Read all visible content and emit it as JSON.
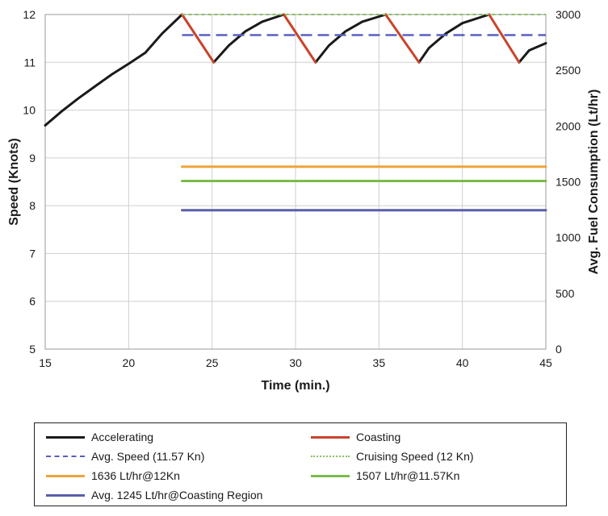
{
  "chart_data": {
    "type": "line",
    "xlabel": "Time (min.)",
    "ylabel": "Speed (Knots)",
    "y2label": "Avg. Fuel Consumption (Lt/hr)",
    "xlim": [
      15,
      45
    ],
    "ylim": [
      5,
      12
    ],
    "y2lim": [
      0,
      3000
    ],
    "xticks": [
      15,
      20,
      25,
      30,
      35,
      40,
      45
    ],
    "yticks": [
      5,
      6,
      7,
      8,
      9,
      10,
      11,
      12
    ],
    "y2ticks": [
      0,
      500,
      1000,
      1500,
      2000,
      2500,
      3000
    ],
    "grid": true,
    "legend_position": "bottom",
    "series": [
      {
        "name": "Accelerating",
        "axis": "left",
        "color": "#1a1a1a",
        "style": "solid",
        "segments": [
          [
            [
              15,
              9.68
            ],
            [
              16,
              9.98
            ],
            [
              17,
              10.25
            ],
            [
              18,
              10.5
            ],
            [
              19,
              10.75
            ],
            [
              20,
              10.97
            ],
            [
              21,
              11.2
            ],
            [
              22,
              11.6
            ],
            [
              23.2,
              12.0
            ]
          ],
          [
            [
              25.1,
              11.0
            ],
            [
              26,
              11.35
            ],
            [
              27,
              11.65
            ],
            [
              28,
              11.85
            ],
            [
              29.3,
              12.0
            ]
          ],
          [
            [
              31.2,
              11.0
            ],
            [
              32,
              11.35
            ],
            [
              33,
              11.65
            ],
            [
              34,
              11.85
            ],
            [
              35.4,
              12.0
            ]
          ],
          [
            [
              37.4,
              11.0
            ],
            [
              38,
              11.3
            ],
            [
              39,
              11.6
            ],
            [
              40,
              11.82
            ],
            [
              41.6,
              12.0
            ]
          ],
          [
            [
              43.4,
              11.0
            ],
            [
              44,
              11.25
            ],
            [
              45,
              11.4
            ]
          ]
        ]
      },
      {
        "name": "Coasting",
        "axis": "left",
        "color": "#c8442b",
        "style": "solid",
        "segments": [
          [
            [
              23.2,
              12.0
            ],
            [
              25.1,
              11.0
            ]
          ],
          [
            [
              29.3,
              12.0
            ],
            [
              31.2,
              11.0
            ]
          ],
          [
            [
              35.4,
              12.0
            ],
            [
              37.4,
              11.0
            ]
          ],
          [
            [
              41.6,
              12.0
            ],
            [
              43.4,
              11.0
            ]
          ]
        ]
      },
      {
        "name": "Avg. Speed (11.57 Kn)",
        "axis": "left",
        "color": "#5b5fbf",
        "style": "dash",
        "segments": [
          [
            [
              23.2,
              11.57
            ],
            [
              45,
              11.57
            ]
          ]
        ]
      },
      {
        "name": "Cruising Speed (12 Kn)",
        "axis": "left",
        "color": "#8cc063",
        "style": "dot",
        "segments": [
          [
            [
              23.2,
              12.0
            ],
            [
              45,
              12.0
            ]
          ]
        ]
      },
      {
        "name": "1636 Lt/hr@12Kn",
        "axis": "right",
        "color": "#f0a43a",
        "style": "solid",
        "segments": [
          [
            [
              23.2,
              1636
            ],
            [
              45,
              1636
            ]
          ]
        ]
      },
      {
        "name": "1507 Lt/hr@11.57Kn",
        "axis": "right",
        "color": "#7cbb4a",
        "style": "solid",
        "segments": [
          [
            [
              23.2,
              1507
            ],
            [
              45,
              1507
            ]
          ]
        ]
      },
      {
        "name": "Avg. 1245 Lt/hr@Coasting Region",
        "axis": "right",
        "color": "#5a5ea8",
        "style": "solid",
        "segments": [
          [
            [
              23.2,
              1245
            ],
            [
              45,
              1245
            ]
          ]
        ]
      }
    ]
  },
  "legend": {
    "items": [
      "Accelerating",
      "Coasting",
      "Avg. Speed (11.57 Kn)",
      "Cruising Speed (12 Kn)",
      "1636 Lt/hr@12Kn",
      "1507 Lt/hr@11.57Kn",
      "Avg. 1245 Lt/hr@Coasting Region"
    ]
  }
}
